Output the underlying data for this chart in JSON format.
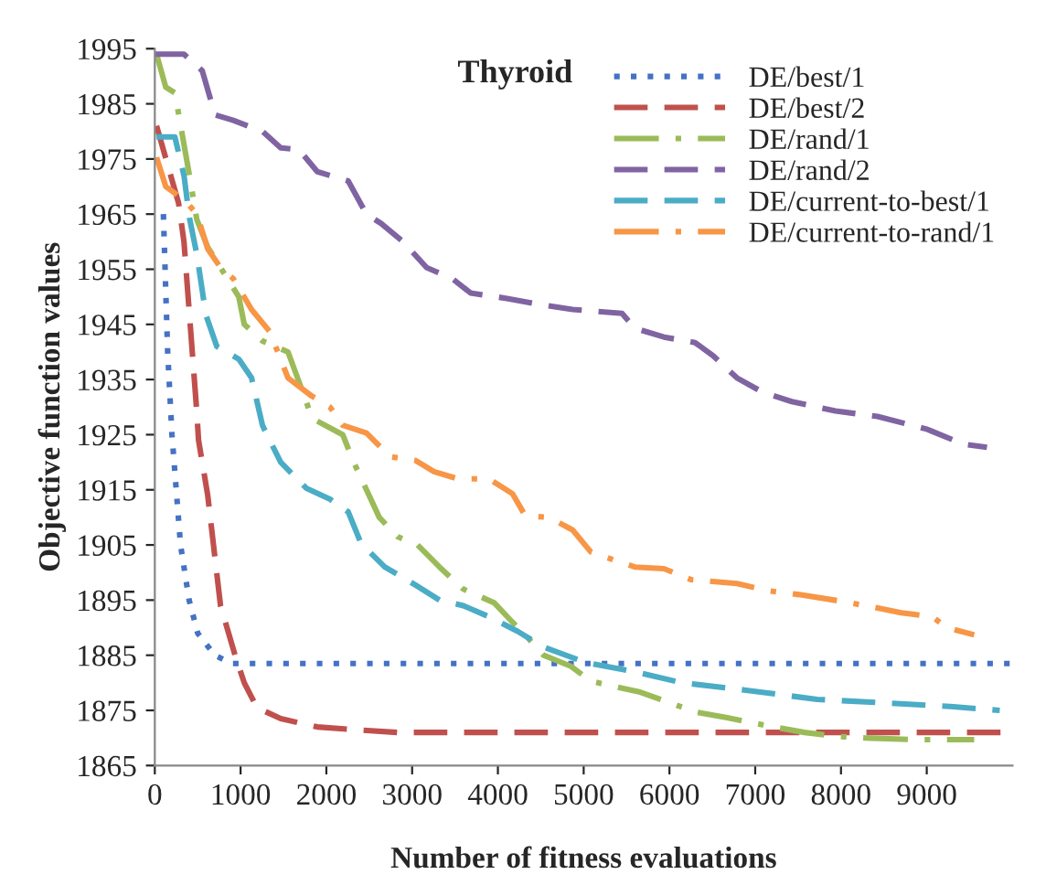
{
  "chart_data": {
    "type": "line",
    "title": "Thyroid",
    "xlabel": "Number of fitness evaluations",
    "ylabel": "Objective function values",
    "xlim": [
      0,
      10000
    ],
    "xticks": [
      0,
      1000,
      2000,
      3000,
      4000,
      5000,
      6000,
      7000,
      8000,
      9000
    ],
    "ylim": [
      1865,
      1995
    ],
    "yticks": [
      1865,
      1875,
      1885,
      1895,
      1905,
      1915,
      1925,
      1935,
      1945,
      1955,
      1965,
      1975,
      1985,
      1995
    ],
    "grid": false,
    "legend": "top right",
    "marker": "none",
    "series": [
      {
        "name": "DE/best/1",
        "color": "#4472c4",
        "line_style": "dotted",
        "x": [
          100,
          150,
          200,
          300,
          400,
          500,
          700,
          900,
          10000
        ],
        "values": [
          1965,
          1940,
          1925,
          1905,
          1895,
          1889,
          1885,
          1883.5,
          1883.5
        ]
      },
      {
        "name": "DE/best/2",
        "color": "#c0504d",
        "line_style": "dashed",
        "x": [
          20,
          277,
          340,
          490,
          510,
          617,
          766,
          936,
          1043,
          1191,
          1468,
          1894,
          2319,
          2830,
          10000
        ],
        "values": [
          1981,
          1967,
          1960,
          1929,
          1924,
          1914,
          1894,
          1885,
          1880,
          1875.5,
          1873.5,
          1872,
          1871.5,
          1871,
          1871
        ]
      },
      {
        "name": "DE/rand/1",
        "color": "#9bbb59",
        "line_style": "dashdot",
        "x": [
          20,
          128,
          234,
          404,
          490,
          617,
          979,
          1043,
          1255,
          1553,
          1766,
          1830,
          2191,
          2319,
          2468,
          2617,
          2830,
          3064,
          3319,
          3596,
          3957,
          4170,
          4319,
          4532,
          4851,
          5085,
          5660,
          6021,
          6298,
          6660,
          7213,
          7574,
          7936,
          8277,
          8851,
          9553
        ],
        "values": [
          1994,
          1988,
          1987,
          1972,
          1964,
          1959,
          1950,
          1945,
          1942,
          1940,
          1931,
          1928,
          1925,
          1920,
          1915,
          1910,
          1906.5,
          1905,
          1901,
          1897,
          1894.5,
          1891,
          1888.7,
          1885,
          1883,
          1880.3,
          1878.3,
          1876.3,
          1874.7,
          1873.7,
          1872,
          1871,
          1870.3,
          1870,
          1869.7,
          1869.7
        ]
      },
      {
        "name": "DE/rand/2",
        "color": "#8064a2",
        "line_style": "dashed",
        "x": [
          0,
          340,
          553,
          702,
          915,
          1255,
          1468,
          1681,
          1894,
          2255,
          2468,
          2638,
          2894,
          3170,
          3468,
          3681,
          4106,
          4447,
          4872,
          5447,
          5596,
          5936,
          6298,
          6511,
          6787,
          7085,
          7426,
          7936,
          8426,
          9000,
          9426,
          9702
        ],
        "values": [
          1994,
          1994,
          1991,
          1983,
          1982,
          1980,
          1977,
          1976.7,
          1972.7,
          1971,
          1965,
          1963.3,
          1960,
          1955.3,
          1953.3,
          1950.7,
          1949.7,
          1948.7,
          1947.7,
          1947,
          1944.3,
          1942.7,
          1941.7,
          1939.3,
          1935.3,
          1932.7,
          1931,
          1929.3,
          1928.3,
          1926,
          1923.3,
          1922.7
        ]
      },
      {
        "name": "DE/current-to-best/1",
        "color": "#4bacc6",
        "line_style": "dashed",
        "x": [
          20,
          234,
          340,
          404,
          490,
          596,
          723,
          979,
          1128,
          1255,
          1298,
          1468,
          1766,
          2043,
          2255,
          2404,
          2681,
          3043,
          3319,
          3596,
          3894,
          4234,
          4532,
          5021,
          5596,
          6149,
          6872,
          7723,
          8574,
          9277,
          9851
        ],
        "values": [
          1979,
          1979,
          1972,
          1964.3,
          1957.7,
          1946.7,
          1941,
          1938.7,
          1935.3,
          1926.7,
          1925.3,
          1920,
          1915.3,
          1913.3,
          1911,
          1905.3,
          1901,
          1897.7,
          1895,
          1894,
          1892,
          1889.3,
          1886.5,
          1883.7,
          1882,
          1880,
          1878.7,
          1877,
          1876.3,
          1875.7,
          1875
        ]
      },
      {
        "name": "DE/current-to-rand/1",
        "color": "#f79646",
        "line_style": "dashdot",
        "x": [
          20,
          128,
          277,
          340,
          490,
          617,
          766,
          915,
          1128,
          1340,
          1553,
          1830,
          2043,
          2191,
          2468,
          2745,
          3043,
          3255,
          3532,
          3894,
          4170,
          4319,
          4596,
          4872,
          5085,
          5596,
          5936,
          6255,
          6787,
          7149,
          7511,
          8043,
          8383,
          8702,
          9064,
          9234,
          9553
        ],
        "values": [
          1975.3,
          1970,
          1968.3,
          1967.7,
          1965,
          1958.7,
          1955.3,
          1953.3,
          1947.7,
          1943.7,
          1935.3,
          1932,
          1930,
          1926.7,
          1925.3,
          1921,
          1920.3,
          1918.3,
          1917,
          1917,
          1914.3,
          1910.3,
          1910,
          1907.7,
          1903.7,
          1901,
          1900.7,
          1898.7,
          1898,
          1896.7,
          1896,
          1894.7,
          1893.7,
          1892.7,
          1892,
          1890,
          1888.7
        ]
      }
    ]
  }
}
